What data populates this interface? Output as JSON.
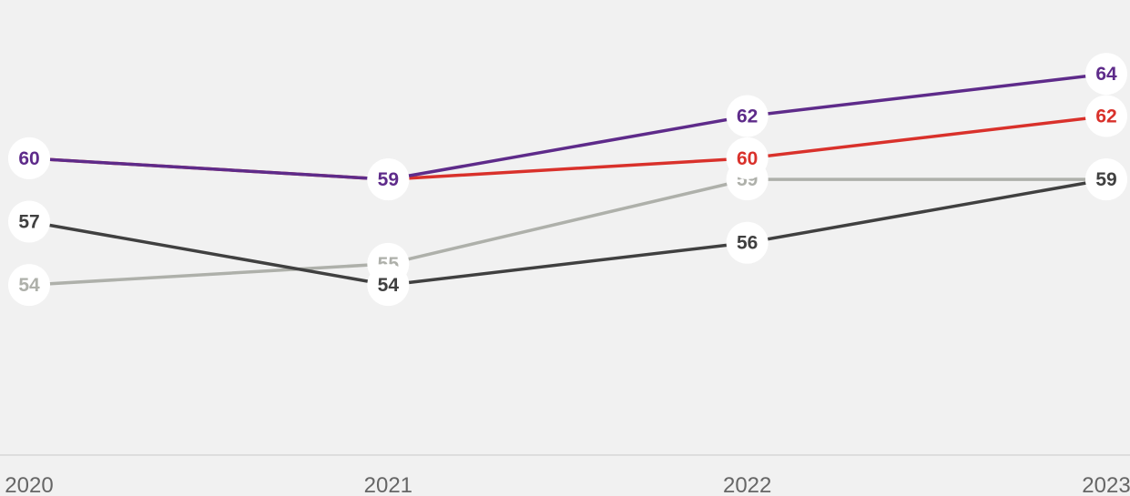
{
  "chart_data": {
    "type": "line",
    "title": "",
    "xlabel": "",
    "ylabel": "",
    "x": [
      "2020",
      "2021",
      "2022",
      "2023"
    ],
    "ylim": [
      44,
      67.5
    ],
    "grid": false,
    "legend": "none",
    "series": [
      {
        "color": "#5e2b8a",
        "values": [
          60,
          59,
          62,
          64
        ]
      },
      {
        "color": "#d9312b",
        "values": [
          60,
          59,
          60,
          62
        ]
      },
      {
        "color": "#404040",
        "values": [
          57,
          54,
          56,
          59
        ]
      },
      {
        "color": "#aeb0aa",
        "values": [
          54,
          55,
          59,
          59
        ]
      }
    ],
    "tick_color": "#666666",
    "baseline_color": "#dddddd",
    "marker_fill": "#ffffff"
  }
}
